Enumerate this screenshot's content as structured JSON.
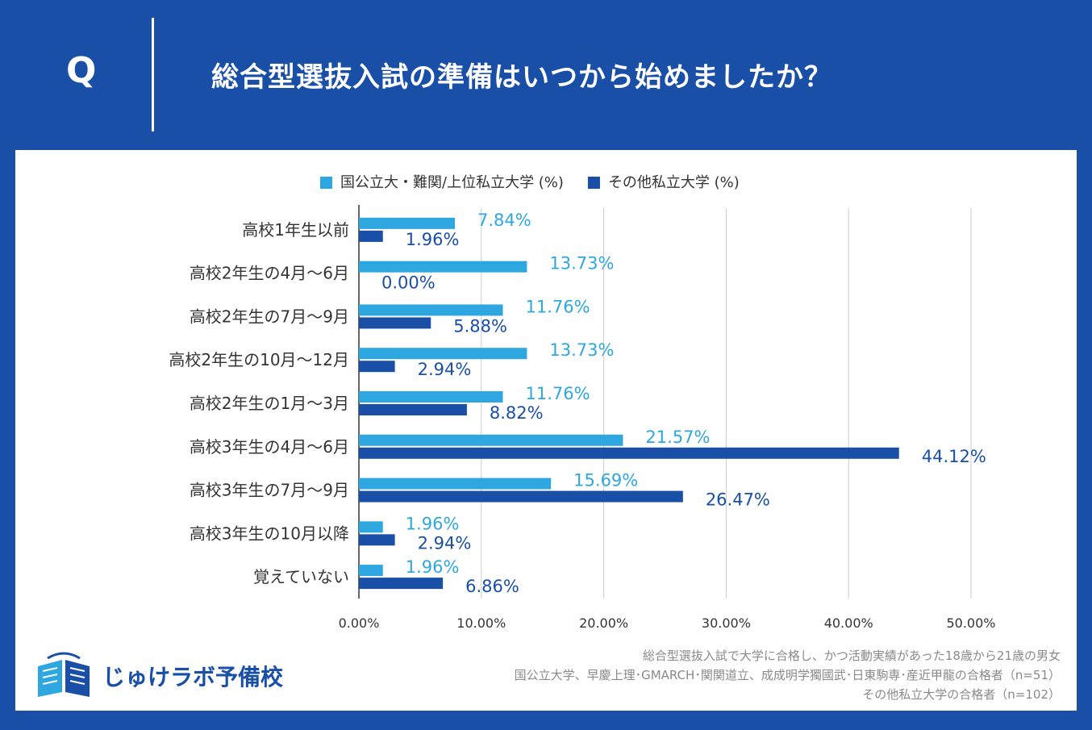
{
  "header": {
    "q_mark": "Q",
    "question": "総合型選抜入試の準備はいつから始めましたか？"
  },
  "colors": {
    "background": "#1a4fa8",
    "series_light": "#2ea7e0",
    "series_dark": "#1a4fa8",
    "grid": "#cccccc",
    "text": "#333333"
  },
  "chart_data": {
    "type": "bar",
    "orientation": "horizontal",
    "categories": [
      "高校1年生以前",
      "高校2年生の4月〜6月",
      "高校2年生の7月〜9月",
      "高校2年生の10月〜12月",
      "高校2年生の1月〜3月",
      "高校3年生の4月〜6月",
      "高校3年生の7月〜9月",
      "高校3年生の10月以降",
      "覚えていない"
    ],
    "series": [
      {
        "name": "国公立大・難関/上位私立大学 (%)",
        "color": "#2ea7e0",
        "values": [
          7.84,
          13.73,
          11.76,
          13.73,
          11.76,
          21.57,
          15.69,
          1.96,
          1.96
        ],
        "labels": [
          "7.84%",
          "13.73%",
          "11.76%",
          "13.73%",
          "11.76%",
          "21.57%",
          "15.69%",
          "1.96%",
          "1.96%"
        ]
      },
      {
        "name": "その他私立大学 (%)",
        "color": "#1a4fa8",
        "values": [
          1.96,
          0.0,
          5.88,
          2.94,
          8.82,
          44.12,
          26.47,
          2.94,
          6.86
        ],
        "labels": [
          "1.96%",
          "0.00%",
          "5.88%",
          "2.94%",
          "8.82%",
          "44.12%",
          "26.47%",
          "2.94%",
          "6.86%"
        ]
      }
    ],
    "xlim": [
      0,
      50
    ],
    "xticks": [
      0,
      10,
      20,
      30,
      40,
      50
    ],
    "xtick_labels": [
      "0.00%",
      "10.00%",
      "20.00%",
      "30.00%",
      "40.00%",
      "50.00%"
    ],
    "legend_position": "top-center",
    "grid": true
  },
  "footnotes": [
    "総合型選抜入試で大学に合格し、かつ活動実績があった18歳から21歳の男女",
    "国公立大学、早慶上理･GMARCH･関関道立、成成明学獨國武･日東駒専･産近甲龍の合格者（n=51）",
    "その他私立大学の合格者（n=102）"
  ],
  "logo": {
    "text": "じゅけラボ予備校",
    "icon": "open-book-icon"
  }
}
